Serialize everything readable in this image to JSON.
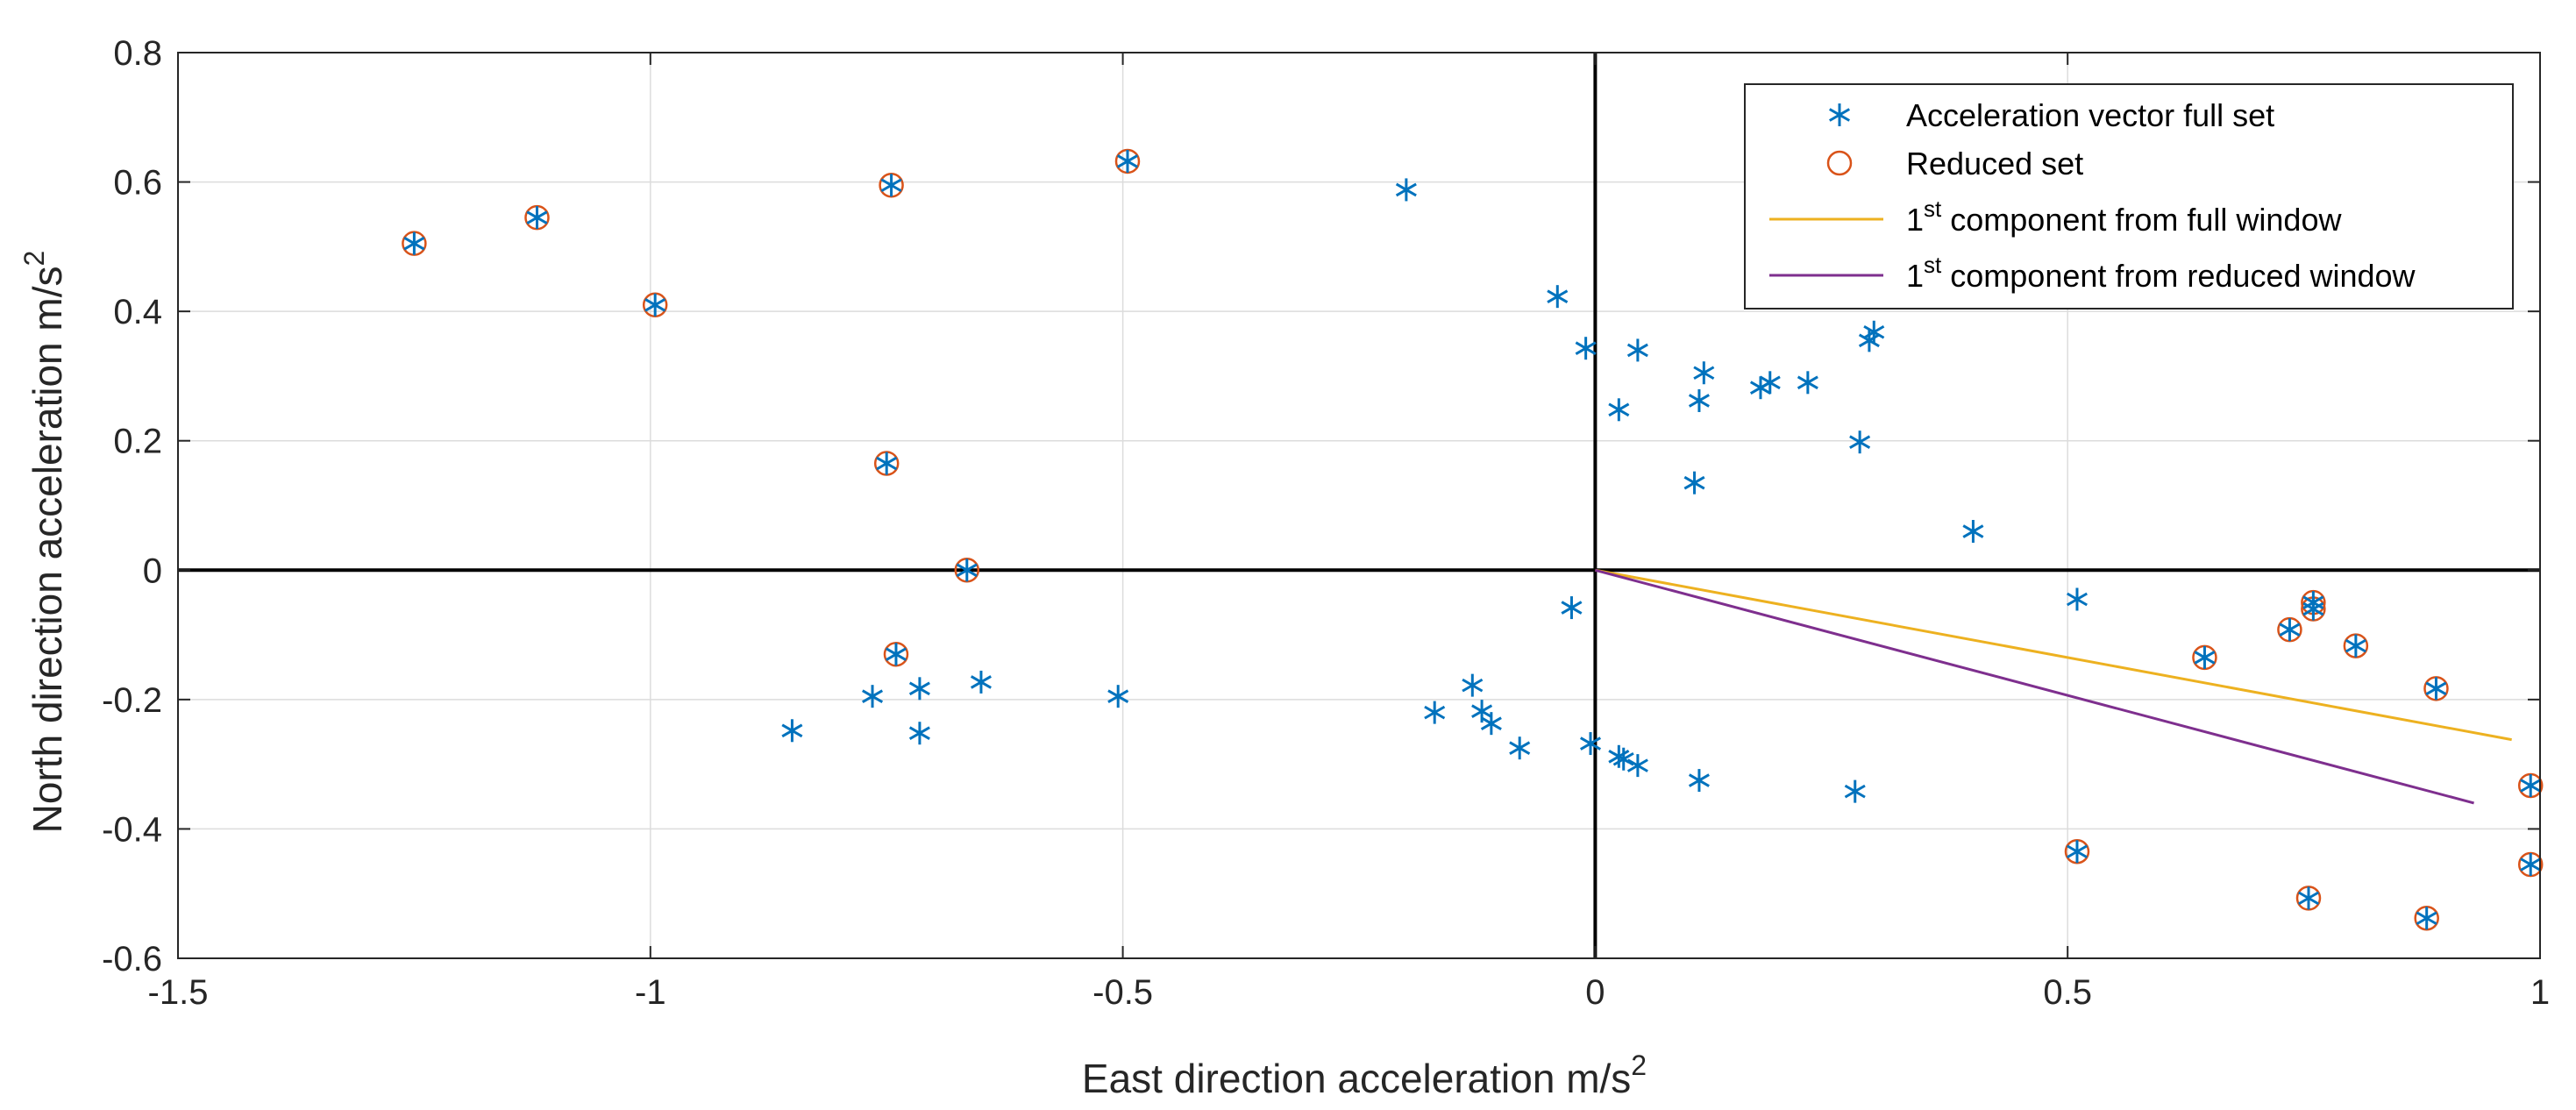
{
  "chart_data": {
    "type": "scatter",
    "title": "",
    "xlabel": "East direction acceleration m/s",
    "xlabel_sup": "2",
    "ylabel": "North direction acceleration m/s",
    "ylabel_sup": "2",
    "xlim": [
      -1.5,
      1
    ],
    "ylim": [
      -0.6,
      0.8
    ],
    "xticks": [
      -1.5,
      -1,
      -0.5,
      0,
      0.5,
      1
    ],
    "yticks": [
      -0.6,
      -0.4,
      -0.2,
      0,
      0.2,
      0.4,
      0.6,
      0.8
    ],
    "xtick_labels": [
      "-1.5",
      "-1",
      "-0.5",
      "0",
      "0.5",
      "1"
    ],
    "ytick_labels": [
      "-0.6",
      "-0.4",
      "-0.2",
      "0",
      "0.2",
      "0.4",
      "0.6",
      "0.8"
    ],
    "grid": true,
    "legend_position": "top-right",
    "colors": {
      "full_set": "#0072BD",
      "reduced_set": "#D95319",
      "full_window": "#EDB120",
      "reduced_window": "#7E2F8E",
      "axes_cross": "#000000",
      "grid": "#DCDCDC",
      "frame": "#262626"
    },
    "legend": [
      {
        "key": "full_set",
        "label": "Acceleration vector full set",
        "marker": "asterisk"
      },
      {
        "key": "reduced_set",
        "label": "Reduced set",
        "marker": "circle"
      },
      {
        "key": "full_window",
        "label_pre": "1",
        "label_sup": "st",
        "label_post": " component from full window",
        "marker": "line"
      },
      {
        "key": "reduced_window",
        "label_pre": "1",
        "label_sup": "st",
        "label_post": " component from reduced window",
        "marker": "line"
      }
    ],
    "series": [
      {
        "name": "Acceleration vector full set",
        "marker": "asterisk",
        "points": [
          [
            -1.25,
            0.505
          ],
          [
            -1.12,
            0.545
          ],
          [
            -0.995,
            0.41
          ],
          [
            -0.745,
            0.595
          ],
          [
            -0.495,
            0.632
          ],
          [
            -0.2,
            0.588
          ],
          [
            -0.75,
            0.165
          ],
          [
            -0.665,
            0.0
          ],
          [
            -0.74,
            -0.13
          ],
          [
            -0.85,
            -0.248
          ],
          [
            -0.765,
            -0.195
          ],
          [
            -0.715,
            -0.183
          ],
          [
            -0.715,
            -0.252
          ],
          [
            -0.65,
            -0.173
          ],
          [
            -0.505,
            -0.195
          ],
          [
            -0.17,
            -0.22
          ],
          [
            -0.13,
            -0.178
          ],
          [
            -0.12,
            -0.218
          ],
          [
            -0.11,
            -0.237
          ],
          [
            -0.08,
            -0.275
          ],
          [
            -0.025,
            -0.058
          ],
          [
            -0.005,
            -0.268
          ],
          [
            0.025,
            -0.288
          ],
          [
            0.03,
            -0.292
          ],
          [
            0.045,
            -0.302
          ],
          [
            0.11,
            -0.325
          ],
          [
            0.275,
            -0.342
          ],
          [
            -0.04,
            0.423
          ],
          [
            -0.01,
            0.343
          ],
          [
            0.025,
            0.248
          ],
          [
            0.045,
            0.34
          ],
          [
            0.11,
            0.262
          ],
          [
            0.115,
            0.305
          ],
          [
            0.105,
            0.135
          ],
          [
            0.175,
            0.282
          ],
          [
            0.185,
            0.29
          ],
          [
            0.225,
            0.29
          ],
          [
            0.28,
            0.198
          ],
          [
            0.29,
            0.355
          ],
          [
            0.295,
            0.368
          ],
          [
            0.4,
            0.06
          ],
          [
            0.51,
            -0.045
          ],
          [
            0.645,
            -0.135
          ],
          [
            0.735,
            -0.092
          ],
          [
            0.76,
            -0.05
          ],
          [
            0.76,
            -0.06
          ],
          [
            0.805,
            -0.117
          ],
          [
            0.89,
            -0.183
          ],
          [
            0.99,
            -0.333
          ],
          [
            0.99,
            -0.455
          ],
          [
            0.51,
            -0.435
          ],
          [
            0.755,
            -0.507
          ],
          [
            0.88,
            -0.538
          ]
        ]
      },
      {
        "name": "Reduced set",
        "marker": "circle",
        "points": [
          [
            -1.25,
            0.505
          ],
          [
            -1.12,
            0.545
          ],
          [
            -0.995,
            0.41
          ],
          [
            -0.745,
            0.595
          ],
          [
            -0.495,
            0.632
          ],
          [
            -0.75,
            0.165
          ],
          [
            -0.665,
            0.0
          ],
          [
            -0.74,
            -0.13
          ],
          [
            0.645,
            -0.135
          ],
          [
            0.735,
            -0.092
          ],
          [
            0.76,
            -0.05
          ],
          [
            0.76,
            -0.06
          ],
          [
            0.805,
            -0.117
          ],
          [
            0.89,
            -0.183
          ],
          [
            0.99,
            -0.333
          ],
          [
            0.99,
            -0.455
          ],
          [
            0.51,
            -0.435
          ],
          [
            0.755,
            -0.507
          ],
          [
            0.88,
            -0.538
          ]
        ]
      },
      {
        "name": "1st component from full window",
        "marker": "line",
        "line": [
          [
            0,
            0
          ],
          [
            0.97,
            -0.262
          ]
        ]
      },
      {
        "name": "1st component from reduced window",
        "marker": "line",
        "line": [
          [
            0,
            0
          ],
          [
            0.93,
            -0.36
          ]
        ]
      }
    ]
  }
}
